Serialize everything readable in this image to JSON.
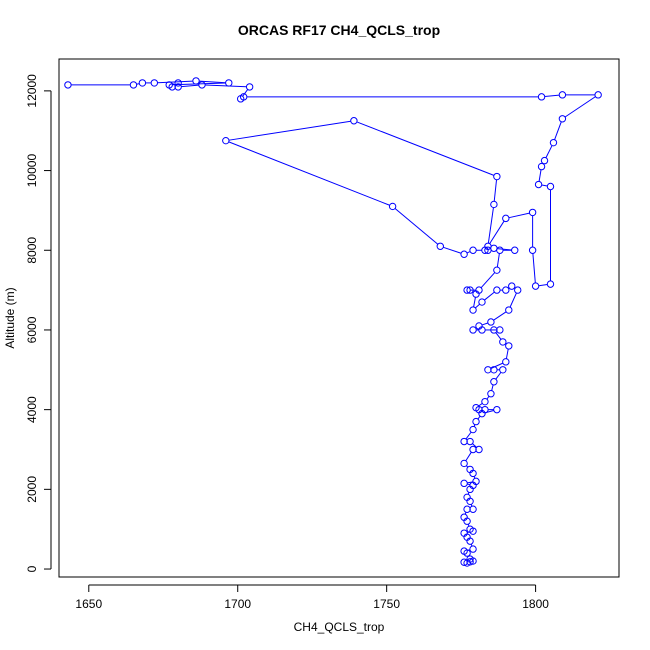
{
  "chart_data": {
    "type": "line",
    "title": "ORCAS RF17 CH4_QCLS_trop",
    "xlabel": "CH4_QCLS_trop",
    "ylabel": "Altitude (m)",
    "xlim": [
      1640,
      1828
    ],
    "ylim": [
      -200,
      12800
    ],
    "x_ticks": [
      "1650",
      "1700",
      "1750",
      "1800"
    ],
    "y_ticks": [
      "0",
      "2000",
      "4000",
      "6000",
      "8000",
      "10000",
      "12000"
    ],
    "grid": false,
    "series_color": "#0000ff",
    "points": [
      [
        1777,
        150
      ],
      [
        1776,
        170
      ],
      [
        1778,
        180
      ],
      [
        1779,
        200
      ],
      [
        1778,
        250
      ],
      [
        1777,
        400
      ],
      [
        1776,
        450
      ],
      [
        1779,
        500
      ],
      [
        1778,
        700
      ],
      [
        1777,
        800
      ],
      [
        1776,
        900
      ],
      [
        1779,
        950
      ],
      [
        1778,
        1000
      ],
      [
        1777,
        1200
      ],
      [
        1776,
        1300
      ],
      [
        1777,
        1500
      ],
      [
        1779,
        1500
      ],
      [
        1778,
        1700
      ],
      [
        1777,
        1800
      ],
      [
        1778,
        2000
      ],
      [
        1779,
        2100
      ],
      [
        1776,
        2150
      ],
      [
        1780,
        2200
      ],
      [
        1779,
        2400
      ],
      [
        1778,
        2500
      ],
      [
        1776,
        2650
      ],
      [
        1779,
        3000
      ],
      [
        1781,
        3000
      ],
      [
        1778,
        3200
      ],
      [
        1776,
        3200
      ],
      [
        1779,
        3500
      ],
      [
        1780,
        3700
      ],
      [
        1782,
        3900
      ],
      [
        1787,
        4000
      ],
      [
        1783,
        4000
      ],
      [
        1781,
        4000
      ],
      [
        1780,
        4050
      ],
      [
        1783,
        4200
      ],
      [
        1785,
        4400
      ],
      [
        1786,
        4700
      ],
      [
        1789,
        5000
      ],
      [
        1786,
        5000
      ],
      [
        1784,
        5000
      ],
      [
        1790,
        5200
      ],
      [
        1791,
        5600
      ],
      [
        1789,
        5700
      ],
      [
        1786,
        6000
      ],
      [
        1788,
        6000
      ],
      [
        1782,
        6000
      ],
      [
        1779,
        6000
      ],
      [
        1781,
        6100
      ],
      [
        1785,
        6200
      ],
      [
        1791,
        6500
      ],
      [
        1794,
        7000
      ],
      [
        1792,
        7100
      ],
      [
        1790,
        7000
      ],
      [
        1787,
        7000
      ],
      [
        1782,
        6700
      ],
      [
        1779,
        6500
      ],
      [
        1780,
        6900
      ],
      [
        1778,
        7000
      ],
      [
        1777,
        7000
      ],
      [
        1781,
        7000
      ],
      [
        1787,
        7500
      ],
      [
        1788,
        8000
      ],
      [
        1793,
        8000
      ],
      [
        1786,
        8050
      ],
      [
        1784,
        8000
      ],
      [
        1783,
        8000
      ],
      [
        1779,
        8000
      ],
      [
        1776,
        7900
      ],
      [
        1768,
        8100
      ],
      [
        1752,
        9100
      ],
      [
        1696,
        10750
      ],
      [
        1739,
        11250
      ],
      [
        1787,
        9850
      ],
      [
        1786,
        9150
      ],
      [
        1784,
        8100
      ],
      [
        1790,
        8800
      ],
      [
        1799,
        8950
      ],
      [
        1799,
        8000
      ],
      [
        1800,
        7100
      ],
      [
        1805,
        7150
      ],
      [
        1805,
        9600
      ],
      [
        1801,
        9650
      ],
      [
        1802,
        10100
      ],
      [
        1803,
        10250
      ],
      [
        1806,
        10700
      ],
      [
        1809,
        11300
      ],
      [
        1821,
        11900
      ],
      [
        1809,
        11900
      ],
      [
        1802,
        11850
      ],
      [
        1702,
        11850
      ],
      [
        1701,
        11800
      ],
      [
        1704,
        12100
      ],
      [
        1688,
        12150
      ],
      [
        1680,
        12100
      ],
      [
        1680,
        12200
      ],
      [
        1678,
        12100
      ],
      [
        1677,
        12150
      ],
      [
        1697,
        12200
      ],
      [
        1686,
        12250
      ],
      [
        1672,
        12200
      ],
      [
        1668,
        12200
      ],
      [
        1665,
        12150
      ],
      [
        1643,
        12150
      ]
    ]
  }
}
